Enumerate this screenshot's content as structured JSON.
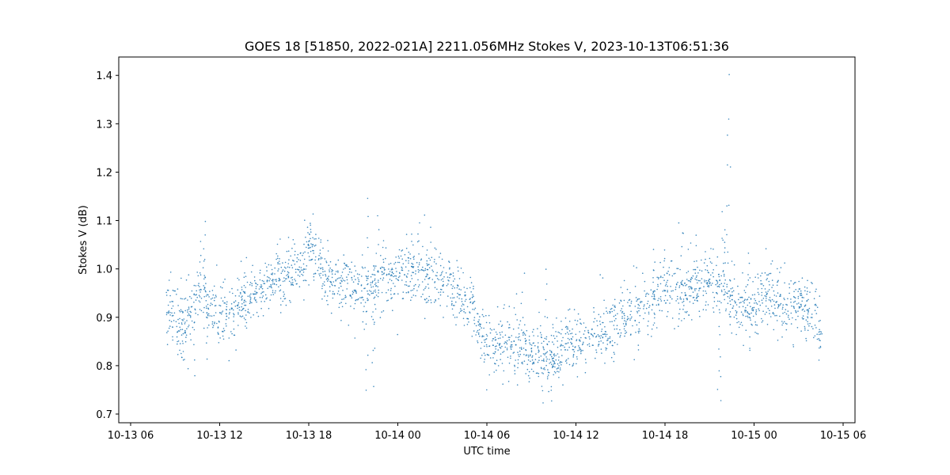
{
  "chart_data": {
    "type": "scatter",
    "title": "GOES 18 [51850, 2022-021A] 2211.056MHz Stokes V, 2023-10-13T06:51:36",
    "xlabel": "UTC time",
    "ylabel": "Stokes V (dB)",
    "x_unit": "hours",
    "xlim": [
      -0.8,
      48.8
    ],
    "ylim": [
      0.682,
      1.438
    ],
    "x_ticks": [
      {
        "value": 0,
        "label": "10-13 06"
      },
      {
        "value": 6,
        "label": "10-13 12"
      },
      {
        "value": 12,
        "label": "10-13 18"
      },
      {
        "value": 18,
        "label": "10-14 00"
      },
      {
        "value": 24,
        "label": "10-14 06"
      },
      {
        "value": 30,
        "label": "10-14 12"
      },
      {
        "value": 36,
        "label": "10-14 18"
      },
      {
        "value": 42,
        "label": "10-15 00"
      },
      {
        "value": 48,
        "label": "10-15 06"
      }
    ],
    "y_ticks": [
      {
        "value": 0.7,
        "label": "0.7"
      },
      {
        "value": 0.8,
        "label": "0.8"
      },
      {
        "value": 0.9,
        "label": "0.9"
      },
      {
        "value": 1.0,
        "label": "1.0"
      },
      {
        "value": 1.1,
        "label": "1.1"
      },
      {
        "value": 1.2,
        "label": "1.2"
      },
      {
        "value": 1.3,
        "label": "1.3"
      },
      {
        "value": 1.4,
        "label": "1.4"
      }
    ],
    "grid": false,
    "legend": "none",
    "marker_color": "#1f77b4",
    "series": [
      {
        "x_start": 2.4,
        "x_end": 46.6,
        "trend": [
          [
            2.4,
            0.93
          ],
          [
            3.0,
            0.89
          ],
          [
            3.6,
            0.88
          ],
          [
            4.0,
            0.9
          ],
          [
            4.4,
            0.93
          ],
          [
            4.8,
            0.96
          ],
          [
            5.3,
            0.92
          ],
          [
            6.0,
            0.9
          ],
          [
            6.8,
            0.91
          ],
          [
            7.5,
            0.93
          ],
          [
            8.5,
            0.95
          ],
          [
            9.5,
            0.97
          ],
          [
            10.5,
            0.99
          ],
          [
            11.5,
            1.01
          ],
          [
            12.0,
            1.04
          ],
          [
            12.5,
            1.03
          ],
          [
            13.0,
            0.98
          ],
          [
            14.0,
            0.97
          ],
          [
            15.0,
            0.96
          ],
          [
            16.0,
            0.95
          ],
          [
            16.5,
            0.97
          ],
          [
            17.0,
            0.98
          ],
          [
            18.0,
            0.99
          ],
          [
            19.0,
            1.0
          ],
          [
            20.0,
            0.99
          ],
          [
            20.5,
            0.98
          ],
          [
            21.0,
            0.97
          ],
          [
            21.5,
            0.96
          ],
          [
            22.0,
            0.94
          ],
          [
            22.5,
            0.93
          ],
          [
            23.0,
            0.92
          ],
          [
            23.6,
            0.87
          ],
          [
            24.5,
            0.85
          ],
          [
            25.5,
            0.84
          ],
          [
            26.3,
            0.83
          ],
          [
            27.0,
            0.82
          ],
          [
            27.5,
            0.84
          ],
          [
            28.0,
            0.83
          ],
          [
            28.5,
            0.82
          ],
          [
            29.0,
            0.83
          ],
          [
            30.0,
            0.85
          ],
          [
            31.0,
            0.86
          ],
          [
            32.0,
            0.87
          ],
          [
            32.5,
            0.88
          ],
          [
            33.0,
            0.9
          ],
          [
            34.0,
            0.91
          ],
          [
            35.0,
            0.92
          ],
          [
            35.5,
            0.95
          ],
          [
            36.0,
            0.97
          ],
          [
            36.5,
            0.96
          ],
          [
            37.0,
            0.94
          ],
          [
            37.5,
            0.96
          ],
          [
            38.5,
            0.97
          ],
          [
            39.5,
            0.97
          ],
          [
            40.0,
            0.96
          ],
          [
            40.5,
            0.93
          ],
          [
            41.0,
            0.91
          ],
          [
            42.0,
            0.93
          ],
          [
            43.0,
            0.95
          ],
          [
            43.5,
            0.93
          ],
          [
            44.0,
            0.92
          ],
          [
            45.0,
            0.93
          ],
          [
            46.0,
            0.91
          ],
          [
            46.3,
            0.88
          ],
          [
            46.6,
            0.86
          ]
        ],
        "spread": 0.03,
        "spikes": [
          [
            5.0,
            1.09
          ],
          [
            4.7,
            1.05
          ],
          [
            4.3,
            0.78
          ],
          [
            5.2,
            0.82
          ],
          [
            12.0,
            1.08
          ],
          [
            12.8,
            1.06
          ],
          [
            15.9,
            0.75
          ],
          [
            16.0,
            1.15
          ],
          [
            16.3,
            0.76
          ],
          [
            16.6,
            1.11
          ],
          [
            17.0,
            1.06
          ],
          [
            19.4,
            1.09
          ],
          [
            19.0,
            1.07
          ],
          [
            26.5,
            0.99
          ],
          [
            27.8,
            0.72
          ],
          [
            28.3,
            0.73
          ],
          [
            28.0,
            1.0
          ],
          [
            35.2,
            1.03
          ],
          [
            37.1,
            1.08
          ],
          [
            38.1,
            1.06
          ],
          [
            39.6,
            0.75
          ],
          [
            39.7,
            0.72
          ],
          [
            39.9,
            1.11
          ],
          [
            40.0,
            1.06
          ],
          [
            40.2,
            1.27
          ],
          [
            40.3,
            1.4
          ],
          [
            41.6,
            1.03
          ],
          [
            45.2,
            0.95
          ],
          [
            46.4,
            0.82
          ]
        ]
      }
    ]
  }
}
